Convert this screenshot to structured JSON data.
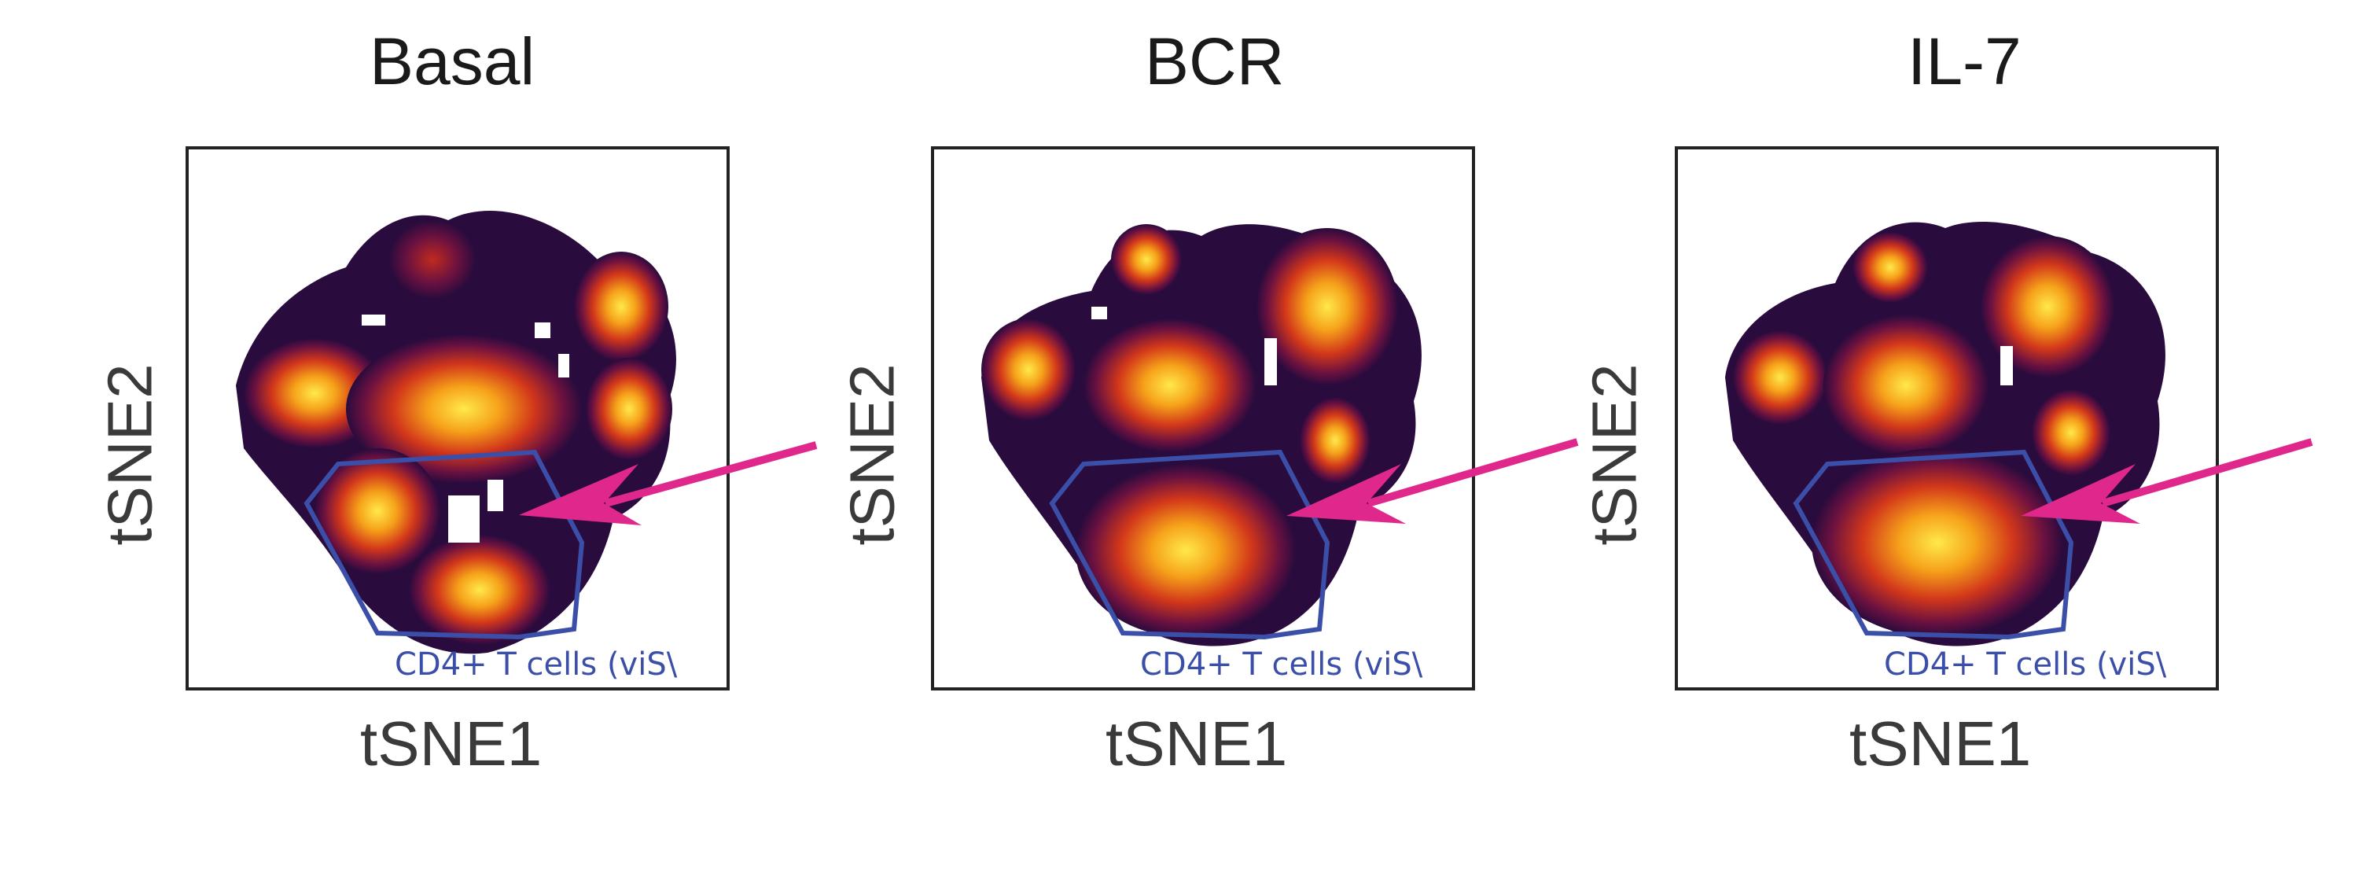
{
  "chart_data": [
    {
      "type": "scatter",
      "title": "Basal",
      "xlabel": "tSNE1",
      "ylabel": "tSNE2",
      "gate_label": "CD4+ T cells (viS\\",
      "colors": {
        "gate": "#3b4fa8",
        "arrow": "#e0288c",
        "density_low": "#2a0b3d",
        "density_high": "#ffe94a"
      }
    },
    {
      "type": "scatter",
      "title": "BCR",
      "xlabel": "tSNE1",
      "ylabel": "tSNE2",
      "gate_label": "CD4+ T cells (viS\\",
      "colors": {
        "gate": "#3b4fa8",
        "arrow": "#e0288c",
        "density_low": "#2a0b3d",
        "density_high": "#ffe94a"
      }
    },
    {
      "type": "scatter",
      "title": "IL-7",
      "xlabel": "tSNE1",
      "ylabel": "tSNE2",
      "gate_label": "CD4+ T cells (viS\\",
      "colors": {
        "gate": "#3b4fa8",
        "arrow": "#e0288c",
        "density_low": "#2a0b3d",
        "density_high": "#ffe94a"
      }
    }
  ]
}
